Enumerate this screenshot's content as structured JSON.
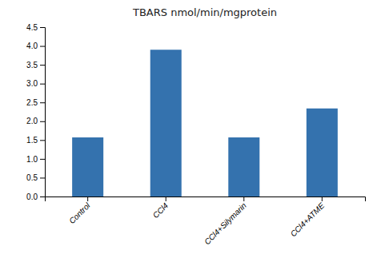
{
  "chart_data": {
    "type": "bar",
    "title": "TBARS nmol/min/mgprotein",
    "categories": [
      "Control",
      "CCl4",
      "CCl4+Silymarin",
      "CCl4+ATME"
    ],
    "values": [
      1.57,
      3.9,
      1.57,
      2.34
    ],
    "color": "#3472ae",
    "ylim": [
      0,
      4.5
    ],
    "yticks": [
      {
        "value": 0,
        "label": "0.0"
      },
      0.5,
      {
        "value": 1,
        "label": "1.0"
      },
      1.5,
      {
        "value": 2,
        "label": "2.0"
      },
      2.5,
      {
        "value": 3,
        "label": "3.0"
      },
      3.5,
      {
        "value": 4,
        "label": "4.0"
      },
      4.5
    ],
    "grid": false
  }
}
